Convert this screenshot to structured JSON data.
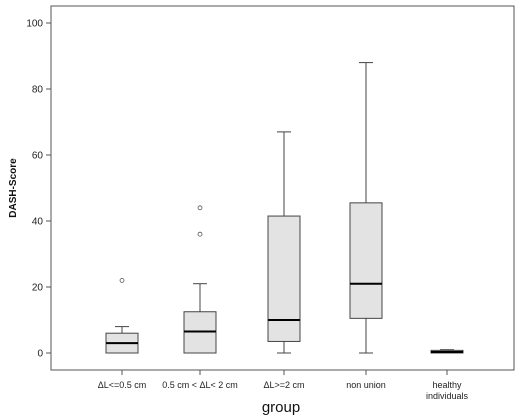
{
  "chart_data": {
    "type": "boxplot",
    "xlabel": "group",
    "ylabel": "DASH-Score",
    "ylim": [
      -5,
      105
    ],
    "yticks": [
      0,
      20,
      40,
      60,
      80,
      100
    ],
    "grid": false,
    "box_fill": "#e3e3e3",
    "line_color": "#444444",
    "categories": [
      [
        "ΔL<=0.5 cm"
      ],
      [
        "0.5 cm < ΔL< 2 cm"
      ],
      [
        "ΔL>=2 cm"
      ],
      [
        "non union"
      ],
      [
        "healthy",
        "individuals"
      ]
    ],
    "boxes": [
      {
        "whisker_low": 0,
        "q1": 0,
        "median": 3,
        "q3": 6,
        "whisker_high": 8,
        "outliers": [
          22
        ]
      },
      {
        "whisker_low": 0,
        "q1": 0,
        "median": 6.5,
        "q3": 12.5,
        "whisker_high": 21,
        "outliers": [
          36,
          44
        ]
      },
      {
        "whisker_low": 0,
        "q1": 3.5,
        "median": 10,
        "q3": 41.5,
        "whisker_high": 67,
        "outliers": []
      },
      {
        "whisker_low": 0,
        "q1": 10.5,
        "median": 21,
        "q3": 45.5,
        "whisker_high": 88,
        "outliers": []
      },
      {
        "whisker_low": 0,
        "q1": 0,
        "median": 0.3,
        "q3": 0.8,
        "whisker_high": 1,
        "outliers": []
      }
    ]
  }
}
